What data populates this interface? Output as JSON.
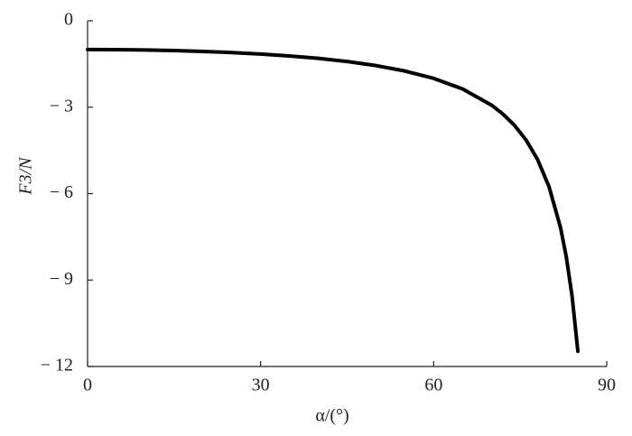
{
  "chart_data": {
    "type": "line",
    "x_label": "α/(°)",
    "y_label": "F3/N",
    "x": [
      0,
      5,
      10,
      15,
      20,
      25,
      30,
      35,
      40,
      45,
      50,
      55,
      60,
      65,
      70,
      72,
      74,
      76,
      78,
      80,
      82,
      83,
      84,
      85
    ],
    "series": [
      {
        "color": "#000000",
        "values": [
          -1,
          -1.004,
          -1.015,
          -1.035,
          -1.064,
          -1.103,
          -1.155,
          -1.221,
          -1.305,
          -1.414,
          -1.556,
          -1.743,
          -2,
          -2.366,
          -2.924,
          -3.236,
          -3.628,
          -4.134,
          -4.81,
          -5.759,
          -7.185,
          -8.206,
          -9.567,
          -11.474
        ]
      }
    ],
    "xlim": [
      0,
      90
    ],
    "xticks": [
      0,
      30,
      60,
      90
    ],
    "ylim": [
      -12,
      0
    ],
    "yticks": [
      0,
      {
        "value": -3,
        "label": "− 3"
      },
      {
        "value": -6,
        "label": "− 6"
      },
      {
        "value": -9,
        "label": "− 9"
      },
      {
        "value": -12,
        "label": "− 12"
      }
    ]
  }
}
